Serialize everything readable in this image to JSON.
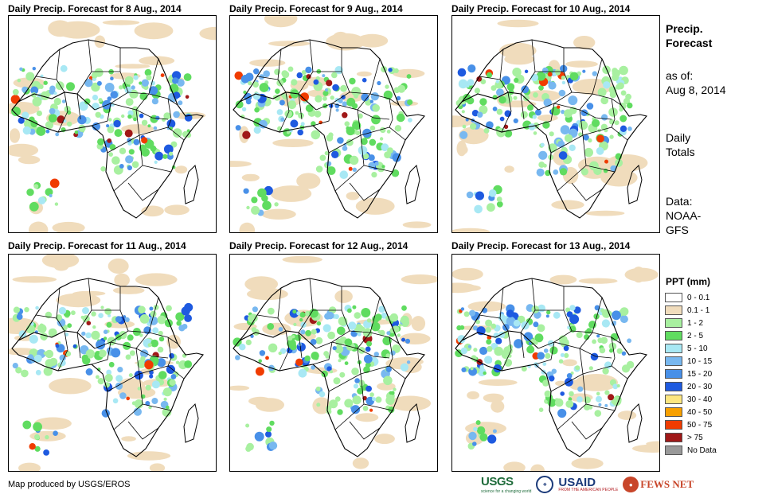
{
  "panels": [
    {
      "title": "Daily Precip. Forecast for 8 Aug., 2014"
    },
    {
      "title": "Daily Precip. Forecast for 9 Aug., 2014"
    },
    {
      "title": "Daily Precip. Forecast for 10 Aug., 2014"
    },
    {
      "title": "Daily Precip. Forecast for 11 Aug., 2014"
    },
    {
      "title": "Daily Precip. Forecast for 12 Aug., 2014"
    },
    {
      "title": "Daily Precip. Forecast for 13 Aug., 2014"
    }
  ],
  "sidebar": {
    "title_line1": "Precip.",
    "title_line2": "Forecast",
    "asof_label": "as of:",
    "asof_date": "Aug 8, 2014",
    "totals_line1": "Daily",
    "totals_line2": "Totals",
    "data_line1": "Data:",
    "data_line2": "NOAA-",
    "data_line3": "GFS"
  },
  "legend": {
    "title": "PPT (mm)",
    "items": [
      {
        "label": "0 - 0.1",
        "color": "#ffffff"
      },
      {
        "label": "0.1 - 1",
        "color": "#f0dcbc"
      },
      {
        "label": "1 - 2",
        "color": "#a8f0a0"
      },
      {
        "label": "2 - 5",
        "color": "#60dc60"
      },
      {
        "label": "5 - 10",
        "color": "#a8e8f4"
      },
      {
        "label": "10 - 15",
        "color": "#78b8f0"
      },
      {
        "label": "15 - 20",
        "color": "#4890e8"
      },
      {
        "label": "20 - 30",
        "color": "#1e5ae0"
      },
      {
        "label": "30 - 40",
        "color": "#fce680"
      },
      {
        "label": "40 - 50",
        "color": "#f8a000"
      },
      {
        "label": "50 - 75",
        "color": "#f03c00"
      },
      {
        "label": "> 75",
        "color": "#a01818"
      },
      {
        "label": "No Data",
        "color": "#999999"
      }
    ]
  },
  "credit": "Map produced by USGS/EROS",
  "logos": {
    "usgs": "USGS",
    "usgs_tagline": "science for a changing world",
    "usaid": "USAID",
    "usaid_sub": "FROM THE AMERICAN PEOPLE",
    "fews": "FEWS NET"
  }
}
